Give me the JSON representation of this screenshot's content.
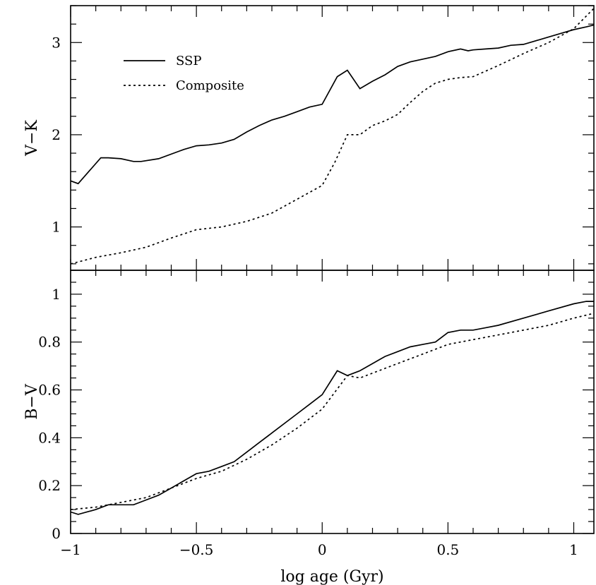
{
  "chart_data": [
    {
      "type": "line",
      "ylabel": "V−K",
      "xlim": [
        -1.0,
        1.08
      ],
      "ylim": [
        0.53,
        3.4
      ],
      "yticks": [
        1,
        2,
        3
      ],
      "yticklabels": [
        "1",
        "2",
        "3"
      ],
      "legend": {
        "placement": "top-left"
      },
      "series": [
        {
          "name": "SSP",
          "style": "solid",
          "x": [
            -1.0,
            -0.97,
            -0.88,
            -0.85,
            -0.8,
            -0.75,
            -0.72,
            -0.65,
            -0.55,
            -0.5,
            -0.45,
            -0.4,
            -0.35,
            -0.3,
            -0.25,
            -0.2,
            -0.15,
            -0.1,
            -0.05,
            0.0,
            0.06,
            0.1,
            0.15,
            0.2,
            0.25,
            0.3,
            0.35,
            0.4,
            0.45,
            0.5,
            0.55,
            0.58,
            0.6,
            0.65,
            0.7,
            0.75,
            0.8,
            0.85,
            0.9,
            0.95,
            1.0,
            1.05,
            1.08
          ],
          "y": [
            1.5,
            1.47,
            1.75,
            1.75,
            1.74,
            1.71,
            1.71,
            1.74,
            1.84,
            1.88,
            1.89,
            1.91,
            1.95,
            2.03,
            2.1,
            2.16,
            2.2,
            2.25,
            2.3,
            2.33,
            2.63,
            2.7,
            2.5,
            2.58,
            2.65,
            2.74,
            2.79,
            2.82,
            2.85,
            2.9,
            2.93,
            2.91,
            2.92,
            2.93,
            2.94,
            2.97,
            2.98,
            3.02,
            3.06,
            3.1,
            3.14,
            3.17,
            3.19
          ]
        },
        {
          "name": "Composite",
          "style": "dotted",
          "x": [
            -1.0,
            -0.9,
            -0.8,
            -0.7,
            -0.6,
            -0.5,
            -0.4,
            -0.3,
            -0.2,
            -0.1,
            0.0,
            0.05,
            0.1,
            0.15,
            0.2,
            0.25,
            0.3,
            0.35,
            0.4,
            0.45,
            0.5,
            0.55,
            0.6,
            0.7,
            0.8,
            0.9,
            1.0,
            1.08
          ],
          "y": [
            0.6,
            0.67,
            0.72,
            0.78,
            0.88,
            0.97,
            1.0,
            1.06,
            1.15,
            1.3,
            1.45,
            1.7,
            2.0,
            2.0,
            2.1,
            2.15,
            2.22,
            2.35,
            2.47,
            2.56,
            2.6,
            2.62,
            2.63,
            2.75,
            2.88,
            3.0,
            3.15,
            3.37
          ]
        }
      ]
    },
    {
      "type": "line",
      "xlabel": "log age (Gyr)",
      "ylabel": "B−V",
      "xlim": [
        -1.0,
        1.08
      ],
      "ylim": [
        0,
        1.1
      ],
      "xticks": [
        -1,
        -0.5,
        0,
        0.5,
        1
      ],
      "xticklabels": [
        "−1",
        "−0.5",
        "0",
        "0.5",
        "1"
      ],
      "yticks": [
        0,
        0.2,
        0.4,
        0.6,
        0.8,
        1
      ],
      "yticklabels": [
        "0",
        "0.2",
        "0.4",
        "0.6",
        "0.8",
        "1"
      ],
      "series": [
        {
          "name": "SSP",
          "style": "solid",
          "x": [
            -1.0,
            -0.97,
            -0.9,
            -0.85,
            -0.8,
            -0.75,
            -0.7,
            -0.65,
            -0.6,
            -0.55,
            -0.5,
            -0.45,
            -0.4,
            -0.35,
            -0.3,
            -0.25,
            -0.2,
            -0.1,
            -0.05,
            0.0,
            0.06,
            0.1,
            0.15,
            0.2,
            0.25,
            0.3,
            0.35,
            0.4,
            0.45,
            0.5,
            0.55,
            0.6,
            0.65,
            0.7,
            0.8,
            0.9,
            1.0,
            1.05,
            1.08
          ],
          "y": [
            0.09,
            0.08,
            0.1,
            0.12,
            0.12,
            0.12,
            0.14,
            0.16,
            0.19,
            0.22,
            0.25,
            0.26,
            0.28,
            0.3,
            0.34,
            0.38,
            0.42,
            0.5,
            0.54,
            0.58,
            0.68,
            0.66,
            0.68,
            0.71,
            0.74,
            0.76,
            0.78,
            0.79,
            0.8,
            0.84,
            0.85,
            0.85,
            0.86,
            0.87,
            0.9,
            0.93,
            0.96,
            0.97,
            0.97
          ]
        },
        {
          "name": "Composite",
          "style": "dotted",
          "x": [
            -1.0,
            -0.9,
            -0.8,
            -0.7,
            -0.6,
            -0.5,
            -0.4,
            -0.3,
            -0.2,
            -0.1,
            0.0,
            0.1,
            0.15,
            0.2,
            0.3,
            0.4,
            0.5,
            0.6,
            0.7,
            0.8,
            0.9,
            1.0,
            1.08
          ],
          "y": [
            0.1,
            0.11,
            0.13,
            0.15,
            0.19,
            0.23,
            0.26,
            0.31,
            0.37,
            0.44,
            0.52,
            0.66,
            0.65,
            0.67,
            0.71,
            0.75,
            0.79,
            0.81,
            0.83,
            0.85,
            0.87,
            0.9,
            0.92
          ]
        }
      ]
    }
  ]
}
